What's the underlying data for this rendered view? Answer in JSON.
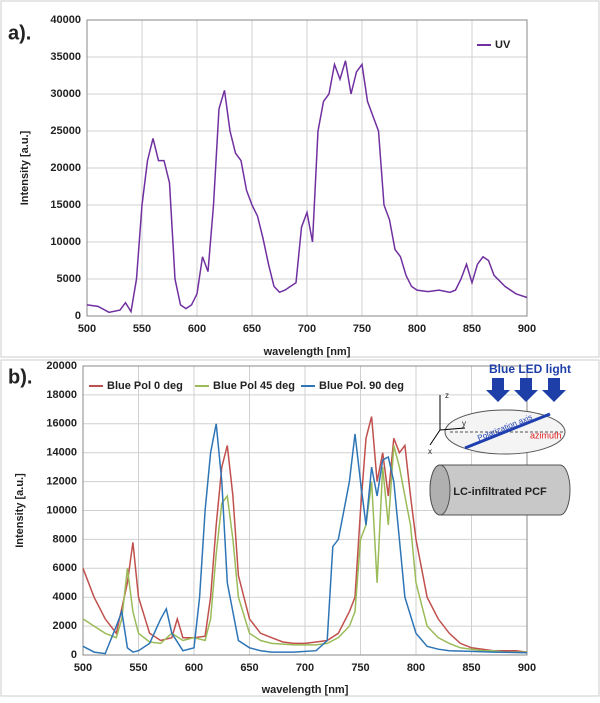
{
  "chart_data": [
    {
      "type": "line",
      "label": "a).",
      "x_label": "wavelength [nm]",
      "y_label": "Intensity [a.u.]",
      "xlim": [
        500,
        900
      ],
      "xticks": [
        500,
        550,
        600,
        650,
        700,
        750,
        800,
        850,
        900
      ],
      "ylim": [
        0,
        40000
      ],
      "yticks": [
        0,
        5000,
        10000,
        15000,
        20000,
        25000,
        30000,
        35000,
        40000
      ],
      "grid": true,
      "legend": "upper right",
      "series": [
        {
          "name": "UV",
          "color": "#7030a0",
          "x": [
            500,
            510,
            520,
            530,
            535,
            540,
            545,
            550,
            555,
            560,
            565,
            570,
            575,
            580,
            585,
            590,
            595,
            600,
            605,
            610,
            615,
            620,
            625,
            630,
            635,
            640,
            645,
            650,
            655,
            660,
            665,
            670,
            675,
            680,
            685,
            690,
            695,
            700,
            705,
            710,
            715,
            720,
            725,
            730,
            735,
            740,
            745,
            750,
            755,
            760,
            765,
            770,
            775,
            780,
            785,
            790,
            795,
            800,
            810,
            820,
            830,
            835,
            840,
            845,
            850,
            855,
            860,
            865,
            870,
            880,
            890,
            900
          ],
          "values": [
            1500,
            1300,
            500,
            800,
            1800,
            600,
            5000,
            15000,
            21000,
            24000,
            21000,
            21000,
            18000,
            5000,
            1500,
            1000,
            1500,
            3000,
            8000,
            6000,
            15000,
            28000,
            30500,
            25000,
            22000,
            21000,
            17000,
            15000,
            13500,
            10500,
            7000,
            4000,
            3200,
            3500,
            4000,
            4500,
            12000,
            14000,
            10000,
            25000,
            29000,
            30000,
            34000,
            32000,
            34500,
            30000,
            33000,
            34000,
            29000,
            27000,
            25000,
            15000,
            13000,
            9000,
            8000,
            5500,
            4000,
            3500,
            3300,
            3500,
            3200,
            3500,
            5000,
            7000,
            4500,
            7000,
            8000,
            7500,
            5500,
            4000,
            3000,
            2500
          ]
        }
      ]
    },
    {
      "type": "line",
      "label": "b).",
      "x_label": "wavelength [nm]",
      "y_label": "Intensity [a.u.]",
      "xlim": [
        500,
        900
      ],
      "xticks": [
        500,
        550,
        600,
        650,
        700,
        750,
        800,
        850,
        900
      ],
      "ylim": [
        0,
        20000
      ],
      "yticks": [
        0,
        2000,
        4000,
        6000,
        8000,
        10000,
        12000,
        14000,
        16000,
        18000,
        20000
      ],
      "grid": true,
      "legend": "top",
      "annotations": [
        "Blue LED light",
        "Polarization axis",
        "azimuth",
        "LC-infiltrated PCF",
        "z",
        "y",
        "x"
      ],
      "series": [
        {
          "name": "Blue Pol 0 deg",
          "color": "#c0504d",
          "x": [
            500,
            510,
            520,
            530,
            540,
            545,
            550,
            560,
            570,
            580,
            585,
            590,
            600,
            610,
            615,
            620,
            625,
            630,
            635,
            640,
            650,
            660,
            670,
            680,
            690,
            700,
            710,
            720,
            730,
            740,
            745,
            750,
            755,
            760,
            765,
            770,
            775,
            780,
            785,
            790,
            795,
            800,
            810,
            820,
            830,
            840,
            850,
            860,
            870,
            880,
            890,
            900
          ],
          "values": [
            6000,
            4000,
            2500,
            1500,
            5000,
            7800,
            4000,
            1500,
            1000,
            1200,
            2500,
            1200,
            1200,
            1300,
            4000,
            9000,
            13000,
            14500,
            11000,
            5500,
            2500,
            1500,
            1200,
            900,
            800,
            800,
            900,
            1000,
            1500,
            3000,
            4000,
            10000,
            15000,
            16500,
            12000,
            14000,
            11000,
            15000,
            14000,
            14500,
            11000,
            8000,
            4000,
            2500,
            1500,
            800,
            500,
            400,
            300,
            300,
            300,
            200
          ]
        },
        {
          "name": "Blue Pol 45 deg",
          "color": "#9bbb59",
          "x": [
            500,
            510,
            520,
            530,
            535,
            540,
            545,
            550,
            560,
            570,
            580,
            590,
            600,
            610,
            615,
            620,
            625,
            630,
            635,
            640,
            650,
            660,
            670,
            690,
            710,
            720,
            730,
            740,
            745,
            750,
            755,
            760,
            765,
            770,
            775,
            780,
            785,
            790,
            795,
            800,
            810,
            820,
            830,
            840,
            850,
            860,
            870,
            880,
            890,
            900
          ],
          "values": [
            2500,
            2000,
            1500,
            1200,
            2500,
            6000,
            3000,
            1500,
            900,
            800,
            1500,
            1000,
            1200,
            1000,
            2500,
            7000,
            10500,
            11000,
            8000,
            4000,
            1500,
            1000,
            800,
            700,
            700,
            800,
            1200,
            2000,
            3000,
            8000,
            9000,
            12000,
            5000,
            13000,
            9000,
            14500,
            13000,
            11000,
            9000,
            5000,
            2000,
            1200,
            800,
            500,
            400,
            300,
            300,
            200,
            200,
            200
          ]
        },
        {
          "name": "Blue Pol. 90 deg",
          "color": "#2e75b6",
          "x": [
            500,
            510,
            520,
            530,
            535,
            540,
            545,
            550,
            560,
            570,
            575,
            580,
            590,
            600,
            605,
            610,
            615,
            620,
            625,
            630,
            640,
            650,
            660,
            670,
            690,
            710,
            720,
            725,
            730,
            735,
            740,
            745,
            750,
            755,
            760,
            765,
            770,
            775,
            780,
            785,
            790,
            800,
            810,
            820,
            830,
            850,
            870,
            900
          ],
          "values": [
            600,
            200,
            100,
            2000,
            3000,
            500,
            200,
            300,
            800,
            2500,
            3200,
            1500,
            300,
            500,
            4000,
            10000,
            14000,
            16000,
            12000,
            5000,
            1000,
            500,
            300,
            200,
            200,
            300,
            1000,
            7500,
            8000,
            10000,
            12000,
            15300,
            12000,
            9000,
            13000,
            11000,
            13500,
            13700,
            12000,
            8000,
            4000,
            1500,
            600,
            400,
            300,
            250,
            200,
            150
          ]
        }
      ]
    }
  ]
}
